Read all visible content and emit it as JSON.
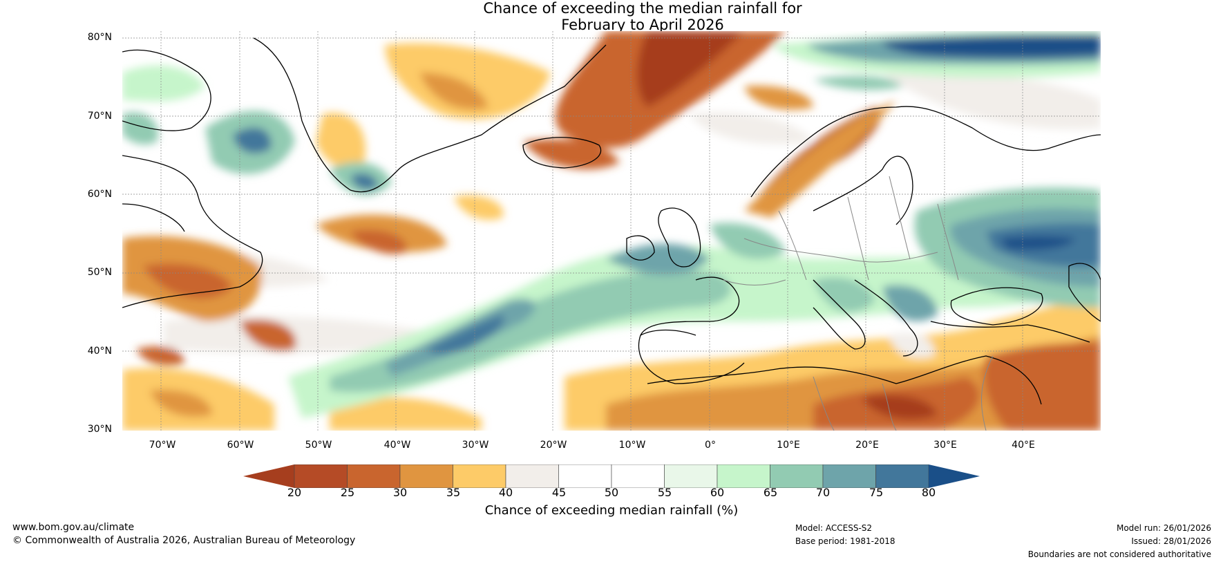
{
  "title": {
    "line1": "Chance of exceeding the median rainfall for",
    "line2": "February to April 2026"
  },
  "map": {
    "lat_labels": [
      "80°N",
      "70°N",
      "60°N",
      "50°N",
      "40°N",
      "30°N"
    ],
    "lon_labels": [
      "70°W",
      "60°W",
      "50°W",
      "40°W",
      "30°W",
      "20°W",
      "10°W",
      "0°",
      "10°E",
      "20°E",
      "30°E",
      "40°E"
    ],
    "extent": {
      "lon_min": -75,
      "lon_max": 50,
      "lat_min": 30,
      "lat_max": 81
    }
  },
  "colorbar": {
    "ticks": [
      "20",
      "25",
      "30",
      "35",
      "40",
      "45",
      "50",
      "55",
      "60",
      "65",
      "70",
      "75",
      "80"
    ],
    "colors": [
      "#a63e1e",
      "#b54b26",
      "#c9652e",
      "#e09540",
      "#fdcb68",
      "#f2eeea",
      "#ffffff",
      "#ffffff",
      "#e9f7e9",
      "#c6f5cb",
      "#92cbb2",
      "#6ea4aa",
      "#42779b",
      "#1a4f88"
    ],
    "label": "Chance of exceeding median rainfall (%)"
  },
  "footer": {
    "website": "www.bom.gov.au/climate",
    "copyright": "© Commonwealth of Australia 2026, Australian Bureau of Meteorology",
    "model": "Model: ACCESS-S2",
    "base_period": "Base period: 1981-2018",
    "model_run": "Model run: 26/01/2026",
    "issued": "Issued: 28/01/2026",
    "disclaimer": "Boundaries are not considered authoritative"
  }
}
